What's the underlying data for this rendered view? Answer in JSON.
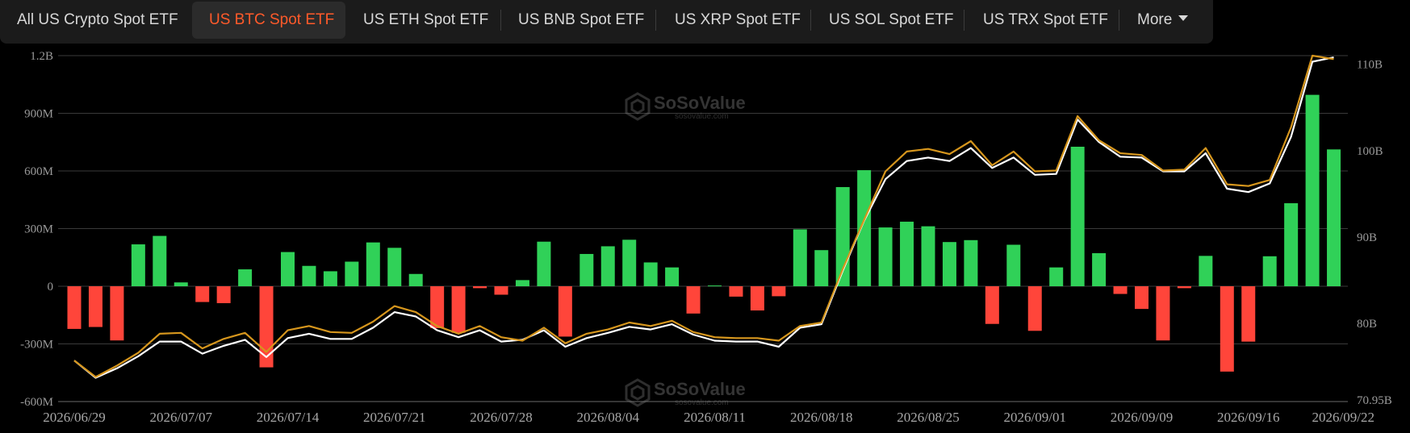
{
  "tabs": [
    {
      "label": "All US Crypto Spot ETF",
      "active": false
    },
    {
      "label": "US BTC Spot ETF",
      "active": true
    },
    {
      "label": "US ETH Spot ETF",
      "active": false
    },
    {
      "label": "US BNB Spot ETF",
      "active": false
    },
    {
      "label": "US XRP Spot ETF",
      "active": false
    },
    {
      "label": "US SOL Spot ETF",
      "active": false
    },
    {
      "label": "US TRX Spot ETF",
      "active": false
    }
  ],
  "more_label": "More",
  "watermark": {
    "brand": "SoSoValue",
    "site": "sosovalue.com"
  },
  "colors": {
    "inflow": "#30d158",
    "outflow": "#ff453a",
    "net_assets_line": "#ffffff",
    "btc_price_line": "#d6961d",
    "active_tab": "#ff5a2a"
  },
  "chart_data": {
    "type": "bar",
    "left_axis": {
      "min": -600000000,
      "max": 1200000000,
      "ticks": [
        -600000000,
        -300000000,
        0,
        300000000,
        600000000,
        900000000,
        1200000000
      ],
      "tick_labels": [
        "-600M",
        "-300M",
        "0",
        "300M",
        "600M",
        "900M",
        "1.2B"
      ]
    },
    "right_axis": {
      "min": 70950000000,
      "max": 111000000000,
      "ticks": [
        70950000000,
        80000000000,
        90000000000,
        100000000000,
        110000000000
      ],
      "tick_labels": [
        "70.95B",
        "80B",
        "90B",
        "100B",
        "110B"
      ]
    },
    "x_tick_labels": [
      "2026/06/29",
      "2026/07/07",
      "2026/07/14",
      "2026/07/21",
      "2026/07/28",
      "2026/08/04",
      "2026/08/11",
      "2026/08/18",
      "2026/08/25",
      "2026/09/01",
      "2026/09/09",
      "2026/09/16",
      "2026/09/22"
    ],
    "x_tick_index": [
      0,
      5,
      10,
      15,
      20,
      25,
      30,
      35,
      40,
      45,
      50,
      55,
      59
    ],
    "daily_net_inflow": [
      -222000000,
      -212000000,
      -282000000,
      218000000,
      262000000,
      20000000,
      -82000000,
      -88000000,
      88000000,
      -422000000,
      178000000,
      106000000,
      78000000,
      128000000,
      228000000,
      200000000,
      64000000,
      -218000000,
      -242000000,
      -10000000,
      -44000000,
      32000000,
      232000000,
      -262000000,
      168000000,
      208000000,
      242000000,
      124000000,
      98000000,
      -142000000,
      4000000,
      -54000000,
      -126000000,
      -52000000,
      296000000,
      188000000,
      516000000,
      604000000,
      306000000,
      336000000,
      312000000,
      230000000,
      240000000,
      -196000000,
      216000000,
      -232000000,
      98000000,
      726000000,
      172000000,
      -40000000,
      -118000000,
      -282000000,
      -10000000,
      158000000,
      -444000000,
      -288000000,
      156000000,
      432000000,
      996000000,
      712000000
    ],
    "total_net_assets": [
      75700000000,
      73700000000,
      74800000000,
      76200000000,
      77900000000,
      77900000000,
      76500000000,
      77400000000,
      78100000000,
      76100000000,
      78300000000,
      78800000000,
      78200000000,
      78200000000,
      79500000000,
      81300000000,
      80800000000,
      79200000000,
      78400000000,
      79200000000,
      77900000000,
      78100000000,
      79200000000,
      77300000000,
      78300000000,
      78900000000,
      79600000000,
      79300000000,
      79900000000,
      78700000000,
      78000000000,
      77900000000,
      77900000000,
      77300000000,
      79500000000,
      79900000000,
      86100000000,
      91900000000,
      96700000000,
      98800000000,
      99200000000,
      98800000000,
      100300000000,
      98000000000,
      99200000000,
      97200000000,
      97300000000,
      103600000000,
      101000000000,
      99300000000,
      99200000000,
      97600000000,
      97600000000,
      99700000000,
      95600000000,
      95200000000,
      96200000000,
      101600000000,
      110300000000,
      110800000000
    ],
    "btc_price_line": [
      75700000000,
      73800000000,
      75100000000,
      76600000000,
      78800000000,
      78900000000,
      77100000000,
      78200000000,
      78900000000,
      76700000000,
      79200000000,
      79700000000,
      79000000000,
      78900000000,
      80200000000,
      82000000000,
      81300000000,
      79700000000,
      78800000000,
      79700000000,
      78400000000,
      78000000000,
      79500000000,
      77700000000,
      78800000000,
      79300000000,
      80100000000,
      79700000000,
      80300000000,
      79000000000,
      78400000000,
      78300000000,
      78300000000,
      78000000000,
      79700000000,
      80100000000,
      86300000000,
      92000000000,
      97600000000,
      99900000000,
      100200000000,
      99600000000,
      101100000000,
      98300000000,
      99900000000,
      97600000000,
      97700000000,
      104000000000,
      101200000000,
      99700000000,
      99500000000,
      97700000000,
      97800000000,
      100300000000,
      96100000000,
      95900000000,
      96600000000,
      102700000000,
      111000000000,
      110600000000
    ]
  }
}
